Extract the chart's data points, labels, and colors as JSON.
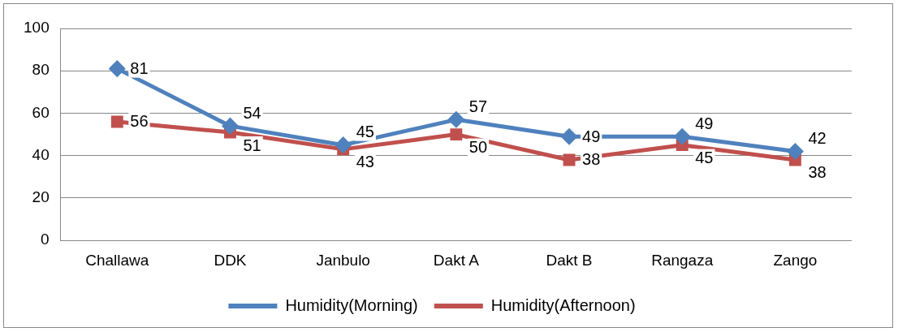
{
  "chart_data": {
    "type": "line",
    "categories": [
      "Challawa",
      "DDK",
      "Janbulo",
      "Dakt A",
      "Dakt B",
      "Rangaza",
      "Zango"
    ],
    "series": [
      {
        "name": "Humidity(Morning)",
        "color": "#4f81bd",
        "values": [
          81,
          54,
          45,
          57,
          49,
          49,
          42
        ],
        "marker": "diamond"
      },
      {
        "name": "Humidity(Afternoon)",
        "color": "#c0504d",
        "values": [
          56,
          51,
          43,
          50,
          38,
          45,
          38
        ],
        "marker": "square"
      }
    ],
    "ylim": [
      0,
      100
    ],
    "yticks": [
      0,
      20,
      40,
      60,
      80,
      100
    ],
    "grid": "y",
    "legend": "bottom",
    "data_labels": true
  }
}
